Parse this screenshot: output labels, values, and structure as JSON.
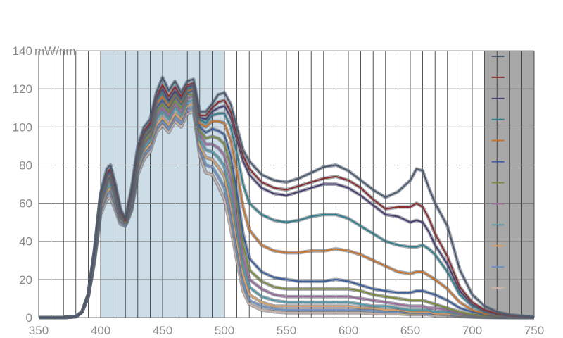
{
  "chart_data": {
    "type": "line",
    "title": "",
    "xlabel": "",
    "ylabel": "",
    "y_unit": "mW/nm",
    "xlim": [
      350,
      750
    ],
    "ylim": [
      0,
      140
    ],
    "x_ticks": [
      350,
      400,
      450,
      500,
      550,
      600,
      650,
      700,
      750
    ],
    "y_ticks": [
      0,
      20,
      40,
      60,
      80,
      100,
      120,
      140
    ],
    "grid": "vertical every 10 nm, horizontal every 20 mW/nm",
    "shaded_band": {
      "x_range": [
        400,
        500
      ],
      "color": "#cddde8"
    },
    "legend": {
      "placement": "right",
      "background": "#a8a8a8",
      "x_range": [
        710,
        750
      ]
    },
    "x": [
      350,
      370,
      380,
      385,
      390,
      395,
      400,
      405,
      408,
      412,
      416,
      420,
      425,
      430,
      435,
      440,
      445,
      450,
      455,
      460,
      465,
      470,
      475,
      480,
      485,
      490,
      495,
      500,
      505,
      510,
      515,
      520,
      530,
      540,
      550,
      560,
      570,
      580,
      590,
      600,
      610,
      620,
      630,
      640,
      650,
      655,
      660,
      665,
      670,
      680,
      690,
      700,
      710,
      720,
      730,
      740,
      750
    ],
    "series": [
      {
        "color": "#4a5a6e",
        "values": [
          0,
          0,
          0.5,
          3,
          12,
          35,
          65,
          78,
          80,
          70,
          57,
          52,
          68,
          90,
          100,
          104,
          118,
          126,
          119,
          124,
          118,
          124,
          125,
          108,
          108,
          112,
          117,
          118,
          112,
          100,
          88,
          82,
          75,
          72,
          71,
          73,
          76,
          79,
          80,
          77,
          72,
          67,
          63,
          66,
          72,
          78,
          77,
          68,
          60,
          48,
          25,
          12,
          6,
          3,
          1.5,
          0.8,
          0.3
        ]
      },
      {
        "color": "#8b2e2e",
        "values": [
          0,
          0,
          0.5,
          3,
          12,
          35,
          65,
          76,
          78,
          68,
          56,
          51,
          66,
          88,
          98,
          102,
          116,
          122,
          116,
          121,
          116,
          122,
          123,
          106,
          106,
          110,
          113,
          114,
          108,
          96,
          85,
          78,
          71,
          68,
          67,
          69,
          71,
          73,
          74,
          72,
          68,
          62,
          57,
          58,
          58,
          60,
          58,
          52,
          44,
          32,
          16,
          8,
          4,
          2,
          1,
          0.5,
          0.2
        ]
      },
      {
        "color": "#4b3f72",
        "values": [
          0,
          0,
          0.5,
          3,
          12,
          35,
          64,
          75,
          77,
          67,
          55,
          51,
          65,
          87,
          97,
          101,
          115,
          120,
          114,
          119,
          115,
          121,
          122,
          105,
          104,
          108,
          110,
          111,
          105,
          93,
          82,
          75,
          68,
          65,
          64,
          66,
          68,
          70,
          70,
          68,
          64,
          59,
          54,
          53,
          50,
          51,
          50,
          45,
          38,
          28,
          14,
          7,
          3.5,
          1.8,
          0.9,
          0.4,
          0.2
        ]
      },
      {
        "color": "#2f7f8a",
        "values": [
          0,
          0,
          0.5,
          3,
          12,
          34,
          63,
          74,
          76,
          66,
          55,
          51,
          64,
          86,
          96,
          100,
          114,
          118,
          113,
          118,
          114,
          120,
          121,
          104,
          102,
          106,
          107,
          107,
          100,
          86,
          70,
          60,
          54,
          51,
          50,
          51,
          53,
          54,
          54,
          52,
          48,
          44,
          40,
          38,
          37,
          37,
          38,
          36,
          33,
          24,
          12,
          6,
          3,
          1.5,
          0.8,
          0.4,
          0.2
        ]
      },
      {
        "color": "#c8732a",
        "values": [
          0,
          0,
          0.5,
          3,
          12,
          34,
          62,
          73,
          75,
          65,
          54,
          50,
          63,
          85,
          95,
          99,
          112,
          116,
          111,
          117,
          113,
          119,
          120,
          102,
          100,
          103,
          103,
          102,
          93,
          77,
          58,
          46,
          38,
          35,
          34,
          34,
          35,
          35,
          36,
          35,
          33,
          30,
          27,
          24,
          23,
          24,
          24,
          22,
          20,
          15,
          8,
          4,
          2,
          1,
          0.6,
          0.3,
          0.1
        ]
      },
      {
        "color": "#3b5e9a",
        "values": [
          0,
          0,
          0.5,
          3,
          12,
          34,
          62,
          72,
          74,
          65,
          54,
          50,
          62,
          84,
          94,
          98,
          110,
          114,
          110,
          116,
          112,
          118,
          119,
          100,
          97,
          99,
          98,
          96,
          85,
          66,
          44,
          31,
          24,
          21,
          20,
          19,
          19,
          19,
          20,
          19,
          17,
          15,
          14,
          13,
          13,
          14,
          14,
          13,
          12,
          9,
          5,
          3,
          1.5,
          0.8,
          0.4,
          0.2,
          0.1
        ]
      },
      {
        "color": "#7a8a3a",
        "values": [
          0,
          0,
          0.5,
          3,
          12,
          33,
          61,
          71,
          73,
          64,
          53,
          50,
          61,
          83,
          92,
          96,
          108,
          112,
          108,
          114,
          110,
          117,
          117,
          98,
          94,
          95,
          94,
          91,
          79,
          60,
          38,
          25,
          19,
          16,
          15,
          15,
          15,
          15,
          15,
          15,
          14,
          12,
          11,
          10,
          9,
          9,
          9,
          8,
          7,
          5,
          3,
          1.5,
          0.8,
          0.4,
          0.2,
          0.1,
          0
        ]
      },
      {
        "color": "#9c6a9a",
        "values": [
          0,
          0,
          0.5,
          3,
          12,
          33,
          60,
          70,
          72,
          63,
          53,
          50,
          60,
          82,
          91,
          95,
          106,
          110,
          106,
          112,
          108,
          115,
          116,
          96,
          91,
          91,
          89,
          85,
          72,
          52,
          32,
          20,
          15,
          12,
          11,
          11,
          11,
          11,
          11,
          11,
          10,
          9,
          8,
          7,
          6,
          6,
          6,
          5,
          5,
          4,
          2,
          1,
          0.6,
          0.3,
          0.2,
          0.1,
          0
        ]
      },
      {
        "color": "#4f9aa8",
        "values": [
          0,
          0,
          0.5,
          3,
          11,
          32,
          59,
          68,
          70,
          61,
          52,
          49,
          59,
          80,
          89,
          93,
          104,
          108,
          104,
          110,
          106,
          113,
          114,
          93,
          88,
          87,
          84,
          79,
          65,
          46,
          27,
          16,
          11,
          9,
          8,
          8,
          8,
          8,
          8,
          8,
          7,
          6,
          6,
          5,
          4,
          4,
          4,
          4,
          3,
          3,
          1.5,
          0.8,
          0.4,
          0.2,
          0.1,
          0,
          0
        ]
      },
      {
        "color": "#d9a066",
        "values": [
          0,
          0,
          0.5,
          3,
          11,
          31,
          57,
          66,
          68,
          60,
          51,
          49,
          58,
          78,
          87,
          91,
          101,
          105,
          101,
          107,
          104,
          111,
          112,
          90,
          84,
          83,
          79,
          74,
          59,
          40,
          22,
          12,
          8,
          6,
          6,
          6,
          6,
          6,
          6,
          6,
          5,
          5,
          4,
          4,
          3,
          3,
          3,
          3,
          2,
          2,
          1,
          0.6,
          0.3,
          0.2,
          0.1,
          0,
          0
        ]
      },
      {
        "color": "#6f8fc0",
        "values": [
          0,
          0,
          0.5,
          3,
          11,
          30,
          56,
          64,
          66,
          58,
          50,
          48,
          57,
          77,
          85,
          89,
          99,
          103,
          99,
          105,
          102,
          109,
          110,
          88,
          80,
          79,
          74,
          68,
          53,
          35,
          18,
          9,
          6,
          4.5,
          4,
          4,
          4,
          4,
          4,
          4,
          4,
          3.5,
          3,
          3,
          2.5,
          2.5,
          2.5,
          2,
          2,
          1.5,
          0.8,
          0.4,
          0.2,
          0.1,
          0,
          0,
          0
        ]
      },
      {
        "color": "#c9b1a6",
        "values": [
          0,
          0,
          0.5,
          3,
          11,
          29,
          54,
          62,
          63,
          56,
          49,
          48,
          56,
          75,
          83,
          87,
          97,
          101,
          97,
          103,
          100,
          107,
          108,
          85,
          76,
          75,
          69,
          62,
          47,
          30,
          14,
          7,
          4,
          3,
          2.5,
          2.5,
          2.5,
          2.5,
          2.5,
          2.5,
          2.5,
          2,
          2,
          2,
          1.5,
          1.5,
          1.5,
          1.5,
          1,
          1,
          0.5,
          0.3,
          0.1,
          0,
          0,
          0,
          0
        ]
      }
    ]
  }
}
